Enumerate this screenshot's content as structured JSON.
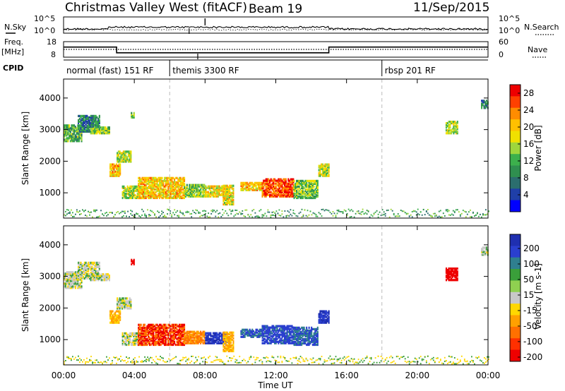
{
  "header": {
    "station": "Christmas Valley West (fitACF)",
    "beam": "Beam 19",
    "date": "11/Sep/2015"
  },
  "left_labels": {
    "nsky": "N.Sky",
    "freq": "Freq.",
    "freq_unit": "[MHz]",
    "cpid": "CPID"
  },
  "right_labels": {
    "nsearch": "N.Search",
    "nave": "Nave"
  },
  "nsky_panel": {
    "y_ticks_left": [
      "10^5",
      "10^0"
    ],
    "y_ticks_right": [
      "10^5",
      "10^0"
    ]
  },
  "freq_panel": {
    "y_ticks_left": [
      "18",
      "8"
    ],
    "y_ticks_right": [
      "60",
      "0"
    ]
  },
  "cpid_segments": [
    {
      "label": "normal (fast) 151 RF",
      "start_h": 0
    },
    {
      "label": "themis 3300 RF",
      "start_h": 6
    },
    {
      "label": "rbsp 201 RF",
      "start_h": 18
    }
  ],
  "colors": {
    "power_scale": [
      "#0000ff",
      "#1f3fa8",
      "#2b6e6e",
      "#2f8f4f",
      "#3cb04c",
      "#9ed63c",
      "#f0e000",
      "#ffc000",
      "#ff8c00",
      "#ff4000",
      "#ee0000"
    ],
    "velocity_scale": [
      "#1f2fb0",
      "#2a3fcf",
      "#2f7f8f",
      "#3a9f3a",
      "#8fd050",
      "#c8c8c8",
      "#ffd700",
      "#ffa000",
      "#ff7000",
      "#ff3000",
      "#ee0000"
    ]
  },
  "chart_data": [
    {
      "type": "line",
      "name": "N.Sky",
      "xlim": [
        0,
        24
      ],
      "y_scale": "log",
      "ylim": [
        1,
        100000
      ]
    },
    {
      "type": "line",
      "name": "Freq.",
      "xlim": [
        0,
        24
      ],
      "ylim": [
        8,
        18
      ],
      "series": [
        {
          "x": [
            0,
            3,
            3,
            15,
            15,
            24
          ],
          "values": [
            14.5,
            14.5,
            10.8,
            10.8,
            14.5,
            14.5
          ]
        }
      ]
    },
    {
      "type": "heatmap",
      "title": "",
      "xlabel": "",
      "ylabel": "Slant Range [km]",
      "xlim": [
        0,
        24
      ],
      "ylim": [
        200,
        4600
      ],
      "y_ticks": [
        1000,
        2000,
        3000,
        4000
      ],
      "colorbar_label": "Power [dB]",
      "colorbar_ticks": [
        4,
        8,
        12,
        16,
        20,
        24,
        28
      ],
      "colorbar_range": [
        0,
        30
      ],
      "regions": [
        {
          "t": [
            0.0,
            1.0
          ],
          "r": [
            2600,
            3100
          ],
          "value": 12
        },
        {
          "t": [
            0.8,
            2.0
          ],
          "r": [
            2900,
            3400
          ],
          "value": 8
        },
        {
          "t": [
            1.5,
            2.6
          ],
          "r": [
            2850,
            3050
          ],
          "value": 14
        },
        {
          "t": [
            2.6,
            3.2
          ],
          "r": [
            1500,
            1900
          ],
          "value": 20
        },
        {
          "t": [
            3.0,
            3.8
          ],
          "r": [
            1950,
            2300
          ],
          "value": 16
        },
        {
          "t": [
            3.8,
            4.0
          ],
          "r": [
            3350,
            3500
          ],
          "value": 14
        },
        {
          "t": [
            3.3,
            4.5
          ],
          "r": [
            800,
            1200
          ],
          "value": 16
        },
        {
          "t": [
            4.2,
            6.8
          ],
          "r": [
            800,
            1450
          ],
          "value": 20
        },
        {
          "t": [
            6.8,
            8.0
          ],
          "r": [
            850,
            1250
          ],
          "value": 14
        },
        {
          "t": [
            8.0,
            9.2
          ],
          "r": [
            850,
            1200
          ],
          "value": 18
        },
        {
          "t": [
            9.0,
            9.6
          ],
          "r": [
            600,
            1200
          ],
          "value": 18
        },
        {
          "t": [
            10.0,
            11.2
          ],
          "r": [
            1050,
            1300
          ],
          "value": 20
        },
        {
          "t": [
            11.2,
            13.0
          ],
          "r": [
            850,
            1400
          ],
          "value": 26
        },
        {
          "t": [
            13.0,
            14.4
          ],
          "r": [
            800,
            1350
          ],
          "value": 14
        },
        {
          "t": [
            14.4,
            15.0
          ],
          "r": [
            1500,
            1900
          ],
          "value": 16
        },
        {
          "t": [
            21.6,
            22.3
          ],
          "r": [
            2850,
            3250
          ],
          "value": 16
        },
        {
          "t": [
            23.6,
            24.0
          ],
          "r": [
            3650,
            3900
          ],
          "value": 8
        }
      ]
    },
    {
      "type": "heatmap",
      "title": "",
      "xlabel": "Time UT",
      "ylabel": "Slant Range [km]",
      "xlim": [
        0,
        24
      ],
      "ylim": [
        200,
        4600
      ],
      "x_ticks": [
        "00:00",
        "04:00",
        "08:00",
        "12:00",
        "16:00",
        "20:00",
        "00:00"
      ],
      "y_ticks": [
        1000,
        2000,
        3000,
        4000
      ],
      "colorbar_label": "Velocity [m s-1]",
      "colorbar_ticks": [
        200,
        100,
        50,
        15,
        -15,
        -50,
        -100,
        -200
      ],
      "regions": [
        {
          "t": [
            0.0,
            1.0
          ],
          "r": [
            2600,
            3100
          ],
          "value": 0
        },
        {
          "t": [
            0.8,
            2.0
          ],
          "r": [
            2900,
            3400
          ],
          "value": 0
        },
        {
          "t": [
            1.5,
            2.6
          ],
          "r": [
            2850,
            3050
          ],
          "value": 0
        },
        {
          "t": [
            2.6,
            3.2
          ],
          "r": [
            1500,
            1900
          ],
          "value": -60
        },
        {
          "t": [
            3.0,
            3.8
          ],
          "r": [
            1950,
            2300
          ],
          "value": 0
        },
        {
          "t": [
            3.8,
            4.0
          ],
          "r": [
            3350,
            3500
          ],
          "value": -200
        },
        {
          "t": [
            3.3,
            4.5
          ],
          "r": [
            800,
            1200
          ],
          "value": 0
        },
        {
          "t": [
            4.2,
            6.8
          ],
          "r": [
            800,
            1450
          ],
          "value": -150
        },
        {
          "t": [
            6.8,
            8.0
          ],
          "r": [
            850,
            1250
          ],
          "value": -100
        },
        {
          "t": [
            8.0,
            9.2
          ],
          "r": [
            850,
            1200
          ],
          "value": 150
        },
        {
          "t": [
            9.0,
            9.6
          ],
          "r": [
            600,
            1200
          ],
          "value": -60
        },
        {
          "t": [
            10.0,
            11.2
          ],
          "r": [
            1050,
            1300
          ],
          "value": 100
        },
        {
          "t": [
            11.2,
            13.0
          ],
          "r": [
            850,
            1400
          ],
          "value": 120
        },
        {
          "t": [
            13.0,
            14.4
          ],
          "r": [
            800,
            1350
          ],
          "value": 100
        },
        {
          "t": [
            14.4,
            15.0
          ],
          "r": [
            1500,
            1900
          ],
          "value": 150
        },
        {
          "t": [
            21.6,
            22.3
          ],
          "r": [
            2850,
            3250
          ],
          "value": -200
        },
        {
          "t": [
            23.6,
            24.0
          ],
          "r": [
            3650,
            3900
          ],
          "value": 0
        }
      ]
    }
  ]
}
